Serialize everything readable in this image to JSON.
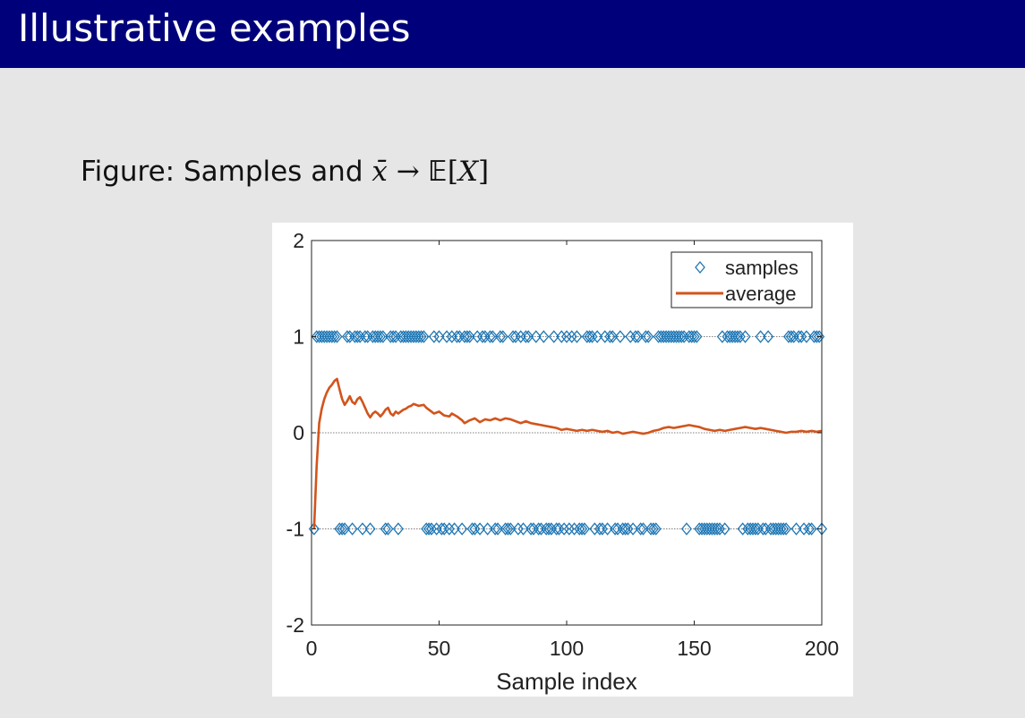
{
  "slide": {
    "title": "Illustrative examples",
    "caption_prefix": "Figure: Samples and",
    "caption_math": {
      "xbar": "x̄",
      "arrow": "→",
      "E": "𝔼",
      "open": "[",
      "X": "X",
      "close": "]"
    }
  },
  "colors": {
    "title_bar": "#00007a",
    "samples": "#1f77b4",
    "average": "#d2541c"
  },
  "chart_data": {
    "type": "scatter",
    "xlabel": "Sample index",
    "ylabel": "",
    "xlim": [
      0,
      200
    ],
    "ylim": [
      -2,
      2
    ],
    "xticks": [
      0,
      50,
      100,
      150,
      200
    ],
    "yticks": [
      -2,
      -1,
      0,
      1,
      2
    ],
    "reference_lines_y": [
      -1,
      0,
      1
    ],
    "legend_position": "top-right",
    "series": [
      {
        "name": "samples",
        "marker": "diamond",
        "x_at_plus1": [
          2,
          3,
          4,
          5,
          6,
          7,
          8,
          9,
          10,
          14,
          15,
          17,
          18,
          19,
          21,
          22,
          24,
          25,
          26,
          27,
          28,
          31,
          32,
          33,
          35,
          36,
          37,
          38,
          39,
          40,
          41,
          42,
          43,
          44,
          48,
          50,
          53,
          55,
          57,
          58,
          60,
          61,
          62,
          65,
          67,
          68,
          70,
          71,
          74,
          75,
          79,
          80,
          82,
          84,
          85,
          88,
          91,
          95,
          98,
          100,
          102,
          104,
          108,
          109,
          110,
          112,
          115,
          117,
          118,
          121,
          125,
          127,
          128,
          131,
          132,
          136,
          137,
          138,
          139,
          140,
          141,
          142,
          143,
          144,
          145,
          146,
          148,
          149,
          150,
          151,
          161,
          163,
          164,
          165,
          166,
          167,
          168,
          170,
          176,
          179,
          187,
          188,
          189,
          191,
          192,
          194,
          197,
          198,
          199
        ],
        "x_at_minus1": [
          1,
          11,
          12,
          13,
          16,
          20,
          23,
          29,
          30,
          34,
          45,
          46,
          47,
          49,
          51,
          52,
          54,
          56,
          59,
          63,
          64,
          66,
          69,
          72,
          73,
          76,
          77,
          78,
          81,
          83,
          86,
          87,
          89,
          90,
          92,
          93,
          94,
          96,
          97,
          99,
          101,
          103,
          105,
          106,
          107,
          111,
          113,
          114,
          116,
          119,
          120,
          122,
          123,
          124,
          126,
          129,
          130,
          133,
          134,
          135,
          147,
          152,
          153,
          154,
          155,
          156,
          157,
          158,
          159,
          160,
          162,
          169,
          171,
          172,
          173,
          174,
          175,
          177,
          178,
          180,
          181,
          182,
          183,
          184,
          185,
          186,
          190,
          193,
          195,
          196,
          200
        ]
      },
      {
        "name": "average",
        "marker": "line",
        "points": [
          [
            1,
            -1.0
          ],
          [
            2,
            -0.35
          ],
          [
            3,
            0.1
          ],
          [
            4,
            0.25
          ],
          [
            5,
            0.35
          ],
          [
            6,
            0.42
          ],
          [
            7,
            0.47
          ],
          [
            8,
            0.5
          ],
          [
            9,
            0.54
          ],
          [
            10,
            0.56
          ],
          [
            11,
            0.45
          ],
          [
            12,
            0.35
          ],
          [
            13,
            0.29
          ],
          [
            14,
            0.33
          ],
          [
            15,
            0.38
          ],
          [
            16,
            0.32
          ],
          [
            17,
            0.3
          ],
          [
            18,
            0.35
          ],
          [
            19,
            0.37
          ],
          [
            20,
            0.32
          ],
          [
            21,
            0.26
          ],
          [
            22,
            0.2
          ],
          [
            23,
            0.16
          ],
          [
            24,
            0.2
          ],
          [
            25,
            0.22
          ],
          [
            26,
            0.2
          ],
          [
            27,
            0.17
          ],
          [
            28,
            0.2
          ],
          [
            29,
            0.24
          ],
          [
            30,
            0.26
          ],
          [
            31,
            0.2
          ],
          [
            32,
            0.18
          ],
          [
            33,
            0.22
          ],
          [
            34,
            0.2
          ],
          [
            35,
            0.22
          ],
          [
            36,
            0.24
          ],
          [
            37,
            0.25
          ],
          [
            38,
            0.27
          ],
          [
            39,
            0.28
          ],
          [
            40,
            0.3
          ],
          [
            42,
            0.28
          ],
          [
            44,
            0.29
          ],
          [
            45,
            0.26
          ],
          [
            47,
            0.22
          ],
          [
            48,
            0.2
          ],
          [
            50,
            0.22
          ],
          [
            52,
            0.18
          ],
          [
            54,
            0.17
          ],
          [
            55,
            0.2
          ],
          [
            57,
            0.17
          ],
          [
            59,
            0.13
          ],
          [
            60,
            0.1
          ],
          [
            62,
            0.13
          ],
          [
            64,
            0.15
          ],
          [
            66,
            0.11
          ],
          [
            68,
            0.14
          ],
          [
            70,
            0.13
          ],
          [
            72,
            0.15
          ],
          [
            74,
            0.13
          ],
          [
            76,
            0.15
          ],
          [
            78,
            0.14
          ],
          [
            80,
            0.12
          ],
          [
            82,
            0.1
          ],
          [
            84,
            0.12
          ],
          [
            86,
            0.1
          ],
          [
            88,
            0.09
          ],
          [
            90,
            0.08
          ],
          [
            92,
            0.07
          ],
          [
            94,
            0.06
          ],
          [
            96,
            0.05
          ],
          [
            98,
            0.03
          ],
          [
            100,
            0.04
          ],
          [
            102,
            0.03
          ],
          [
            104,
            0.02
          ],
          [
            106,
            0.03
          ],
          [
            108,
            0.02
          ],
          [
            110,
            0.03
          ],
          [
            112,
            0.02
          ],
          [
            114,
            0.01
          ],
          [
            116,
            0.02
          ],
          [
            118,
            0.0
          ],
          [
            120,
            0.01
          ],
          [
            122,
            -0.01
          ],
          [
            124,
            0.0
          ],
          [
            126,
            0.01
          ],
          [
            128,
            0.0
          ],
          [
            130,
            -0.01
          ],
          [
            132,
            0.0
          ],
          [
            134,
            0.02
          ],
          [
            136,
            0.03
          ],
          [
            138,
            0.05
          ],
          [
            140,
            0.06
          ],
          [
            142,
            0.05
          ],
          [
            144,
            0.06
          ],
          [
            146,
            0.07
          ],
          [
            148,
            0.08
          ],
          [
            150,
            0.07
          ],
          [
            152,
            0.06
          ],
          [
            154,
            0.04
          ],
          [
            156,
            0.03
          ],
          [
            158,
            0.02
          ],
          [
            160,
            0.03
          ],
          [
            162,
            0.02
          ],
          [
            164,
            0.03
          ],
          [
            166,
            0.04
          ],
          [
            168,
            0.05
          ],
          [
            170,
            0.06
          ],
          [
            172,
            0.05
          ],
          [
            174,
            0.04
          ],
          [
            176,
            0.05
          ],
          [
            178,
            0.04
          ],
          [
            180,
            0.03
          ],
          [
            182,
            0.02
          ],
          [
            184,
            0.01
          ],
          [
            186,
            0.0
          ],
          [
            188,
            0.01
          ],
          [
            190,
            0.01
          ],
          [
            192,
            0.02
          ],
          [
            194,
            0.01
          ],
          [
            196,
            0.02
          ],
          [
            198,
            0.01
          ],
          [
            200,
            0.02
          ]
        ]
      }
    ]
  }
}
